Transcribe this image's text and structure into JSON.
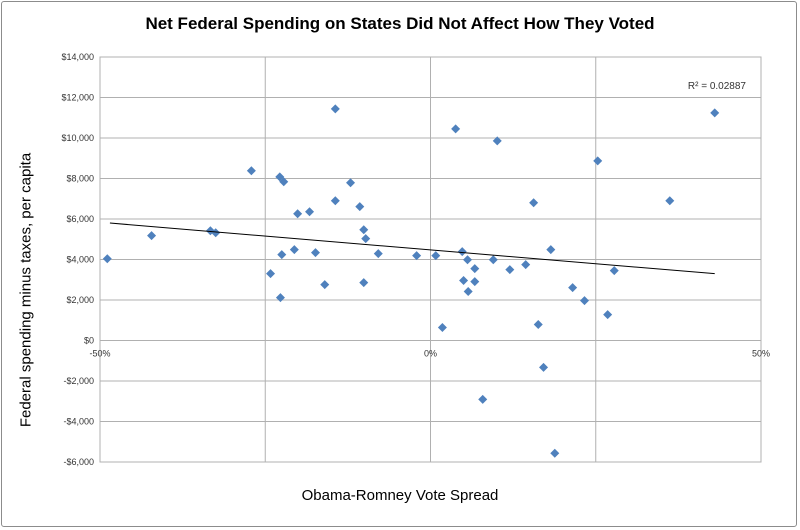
{
  "chart_data": {
    "type": "scatter",
    "title": "Net Federal Spending on States Did Not Affect How They Voted",
    "xlabel": "Obama-Romney Vote Spread",
    "ylabel": "Federal spending minus taxes, per capita",
    "xlim": [
      -50,
      50
    ],
    "ylim": [
      -6000,
      14000
    ],
    "x_ticks": [
      -50,
      0,
      50
    ],
    "x_tick_labels": [
      "-50%",
      "0%",
      "50%"
    ],
    "x_gridlines": [
      -25,
      0,
      25
    ],
    "y_ticks": [
      -6000,
      -4000,
      -2000,
      0,
      2000,
      4000,
      6000,
      8000,
      10000,
      12000,
      14000
    ],
    "y_tick_labels": [
      "-$6,000",
      "-$4,000",
      "-$2,000",
      "$0",
      "$2,000",
      "$4,000",
      "$6,000",
      "$8,000",
      "$10,000",
      "$12,000",
      "$14,000"
    ],
    "grid": true,
    "marker_color": "#4f81bd",
    "trendline": {
      "type": "linear",
      "x": [
        -48.5,
        43
      ],
      "y": [
        5800,
        3300
      ],
      "color": "#000000"
    },
    "annotation": "R² = 0.02887",
    "points": [
      [
        -48.9,
        4040
      ],
      [
        -42.2,
        5180
      ],
      [
        -33.3,
        5420
      ],
      [
        -32.5,
        5320
      ],
      [
        -27.1,
        8380
      ],
      [
        -24.2,
        3300
      ],
      [
        -22.8,
        8080
      ],
      [
        -22.2,
        7840
      ],
      [
        -22.7,
        2120
      ],
      [
        -22.5,
        4240
      ],
      [
        -20.6,
        4490
      ],
      [
        -20.1,
        6260
      ],
      [
        -18.3,
        6360
      ],
      [
        -17.4,
        4340
      ],
      [
        -16.0,
        2760
      ],
      [
        -14.4,
        11440
      ],
      [
        -14.4,
        6900
      ],
      [
        -12.1,
        7790
      ],
      [
        -10.7,
        6610
      ],
      [
        -10.1,
        5470
      ],
      [
        -9.8,
        5030
      ],
      [
        -10.1,
        2860
      ],
      [
        -7.9,
        4290
      ],
      [
        -2.1,
        4190
      ],
      [
        0.8,
        4190
      ],
      [
        1.8,
        640
      ],
      [
        3.8,
        10450
      ],
      [
        4.8,
        4390
      ],
      [
        5.0,
        2960
      ],
      [
        5.6,
        3990
      ],
      [
        5.7,
        2420
      ],
      [
        6.7,
        3550
      ],
      [
        6.7,
        2910
      ],
      [
        9.5,
        3990
      ],
      [
        10.1,
        9860
      ],
      [
        12.0,
        3500
      ],
      [
        14.4,
        3750
      ],
      [
        15.6,
        6800
      ],
      [
        16.3,
        790
      ],
      [
        17.1,
        -1330
      ],
      [
        18.2,
        4490
      ],
      [
        18.8,
        -5570
      ],
      [
        7.9,
        -2910
      ],
      [
        21.5,
        2610
      ],
      [
        23.3,
        1970
      ],
      [
        25.3,
        8870
      ],
      [
        26.8,
        1280
      ],
      [
        27.8,
        3450
      ],
      [
        36.2,
        6900
      ],
      [
        43.0,
        11240
      ]
    ]
  }
}
